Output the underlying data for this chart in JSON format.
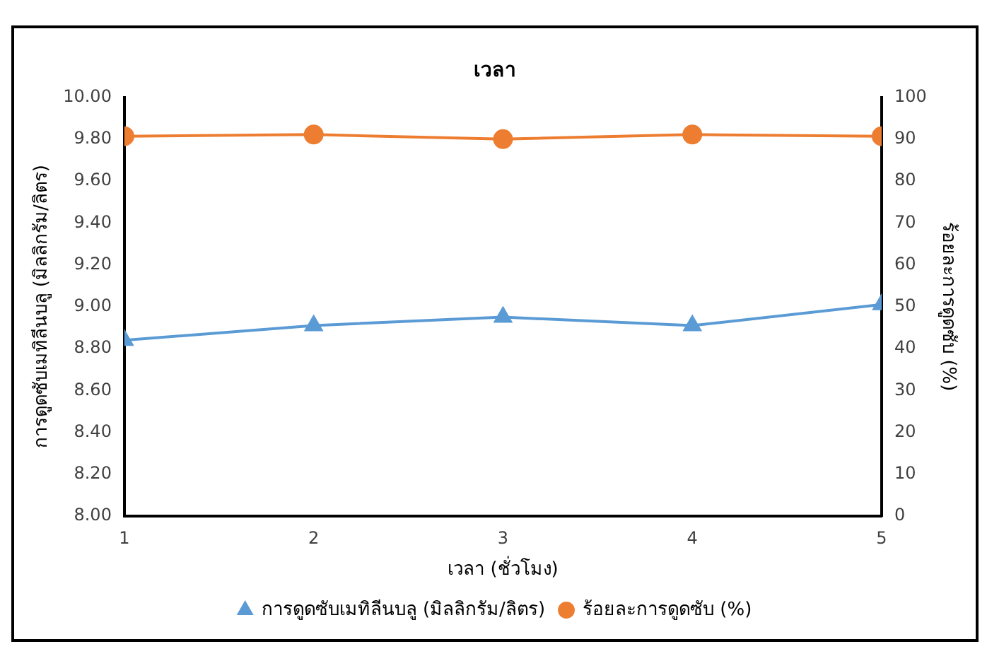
{
  "chart_data": {
    "type": "line",
    "title": "เวลา",
    "xlabel": "เวลา (ชั่วโมง)",
    "ylabel": "การดูดซับเมทิลีนบลู (มิลลิกรัม/ลิตร)",
    "y2label": "ร้อยละการดูดซับ (%)",
    "x": [
      1,
      2,
      3,
      4,
      5
    ],
    "xlim": [
      1,
      5
    ],
    "xticks": [
      1,
      2,
      3,
      4,
      5
    ],
    "ylim": [
      8,
      10
    ],
    "yticks": [
      {
        "value": 8,
        "label": "8.00"
      },
      {
        "value": 8.2,
        "label": "8.20"
      },
      {
        "value": 8.4,
        "label": "8.40"
      },
      {
        "value": 8.6,
        "label": "8.60"
      },
      {
        "value": 8.8,
        "label": "8.80"
      },
      {
        "value": 9,
        "label": "9.00"
      },
      {
        "value": 9.2,
        "label": "9.20"
      },
      {
        "value": 9.4,
        "label": "9.40"
      },
      {
        "value": 9.6,
        "label": "9.60"
      },
      {
        "value": 9.8,
        "label": "9.80"
      },
      {
        "value": 10,
        "label": "10.00"
      }
    ],
    "y2lim": [
      0,
      100
    ],
    "y2ticks": [
      0,
      10,
      20,
      30,
      40,
      50,
      60,
      70,
      80,
      90,
      100
    ],
    "series": [
      {
        "name": "การดูดซับเมทิลีนบลู (มิลลิกรัม/ลิตร)",
        "color": "#5b9bd5",
        "marker": "triangle",
        "values": [
          8.84,
          8.91,
          8.95,
          8.91,
          9.01
        ]
      },
      {
        "name": "ร้อยละการดูดซับ (%)",
        "color": "#ed7d31",
        "marker": "circle",
        "axis": "y2",
        "values": [
          90.7,
          91.1,
          90.0,
          91.1,
          90.7
        ]
      }
    ],
    "grid": false,
    "legend": "bottom",
    "line_style": "solid"
  }
}
